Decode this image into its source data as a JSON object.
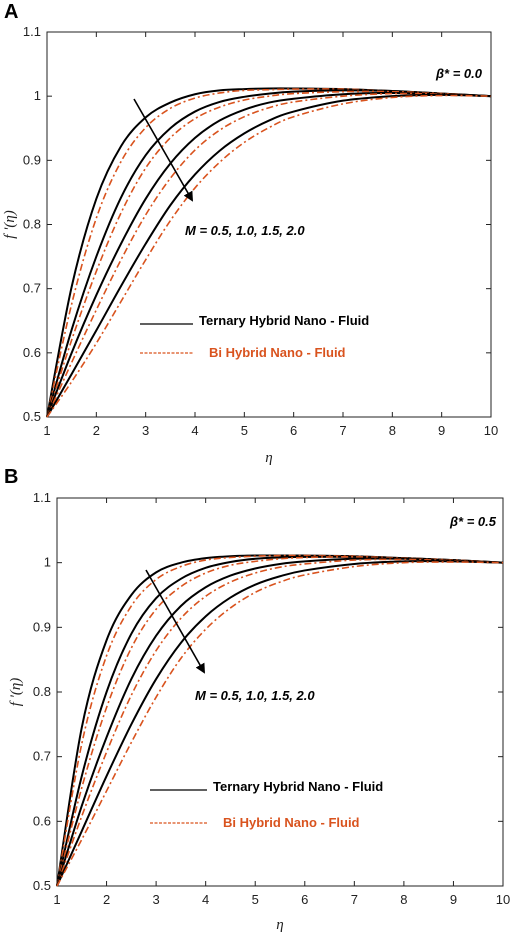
{
  "colors": {
    "ternary": "#000000",
    "bi": "#d9531e",
    "axis": "#222222"
  },
  "chart_data": [
    {
      "type": "line",
      "panel_label": "A",
      "annotation": "β* = 0.0",
      "arrow_label": "M = 0.5, 1.0, 1.5, 2.0",
      "xlabel": "η",
      "ylabel": "f '(η)",
      "xlim": [
        1,
        10
      ],
      "ylim": [
        0.5,
        1.1
      ],
      "xticks": [
        "1",
        "2",
        "3",
        "4",
        "5",
        "6",
        "7",
        "8",
        "9",
        "10"
      ],
      "yticks": [
        "0.5",
        "0.6",
        "0.7",
        "0.8",
        "0.9",
        "1",
        "1.1"
      ],
      "legend": {
        "position": "center-left",
        "entries": [
          "Ternary Hybrid Nano - Fluid",
          "Bi Hybrid Nano - Fluid"
        ]
      },
      "x": [
        1,
        1.5,
        2,
        2.5,
        3,
        3.5,
        4,
        4.5,
        5,
        5.5,
        6,
        7,
        8,
        9,
        10
      ],
      "series": [
        {
          "name": "Ternary Hybrid Nano - Fluid",
          "style": "solid",
          "M": 0.5,
          "values": [
            0.5,
            0.703,
            0.84,
            0.922,
            0.967,
            0.99,
            1.003,
            1.009,
            1.011,
            1.012,
            1.012,
            1.011,
            1.008,
            1.004,
            1.0
          ]
        },
        {
          "name": "Bi Hybrid Nano - Fluid",
          "style": "dashdot",
          "M": 0.5,
          "values": [
            0.5,
            0.676,
            0.81,
            0.898,
            0.951,
            0.981,
            0.997,
            1.005,
            1.009,
            1.01,
            1.011,
            1.011,
            1.008,
            1.004,
            1.0
          ]
        },
        {
          "name": "Ternary Hybrid Nano - Fluid",
          "style": "solid",
          "M": 1.0,
          "values": [
            0.5,
            0.636,
            0.75,
            0.842,
            0.908,
            0.95,
            0.976,
            0.991,
            0.999,
            1.004,
            1.007,
            1.009,
            1.008,
            1.004,
            1.0
          ]
        },
        {
          "name": "Bi Hybrid Nano - Fluid",
          "style": "dashdot",
          "M": 1.0,
          "values": [
            0.5,
            0.62,
            0.727,
            0.818,
            0.888,
            0.935,
            0.965,
            0.983,
            0.994,
            1.0,
            1.004,
            1.007,
            1.007,
            1.004,
            1.0
          ]
        },
        {
          "name": "Ternary Hybrid Nano - Fluid",
          "style": "solid",
          "M": 1.5,
          "values": [
            0.5,
            0.6,
            0.69,
            0.77,
            0.84,
            0.895,
            0.935,
            0.962,
            0.979,
            0.99,
            0.996,
            1.003,
            1.005,
            1.003,
            1.0
          ]
        },
        {
          "name": "Bi Hybrid Nano - Fluid",
          "style": "dashdot",
          "M": 1.5,
          "values": [
            0.5,
            0.585,
            0.667,
            0.745,
            0.815,
            0.872,
            0.916,
            0.947,
            0.968,
            0.982,
            0.991,
            1.0,
            1.004,
            1.003,
            1.0
          ]
        },
        {
          "name": "Ternary Hybrid Nano - Fluid",
          "style": "solid",
          "M": 2.0,
          "values": [
            0.5,
            0.567,
            0.635,
            0.704,
            0.77,
            0.83,
            0.878,
            0.915,
            0.942,
            0.962,
            0.976,
            0.993,
            1.0,
            1.002,
            1.0
          ]
        },
        {
          "name": "Bi Hybrid Nano - Fluid",
          "style": "dashdot",
          "M": 2.0,
          "values": [
            0.5,
            0.555,
            0.615,
            0.68,
            0.745,
            0.806,
            0.857,
            0.897,
            0.928,
            0.951,
            0.968,
            0.988,
            0.998,
            1.001,
            1.0
          ]
        }
      ]
    },
    {
      "type": "line",
      "panel_label": "B",
      "annotation": "β* = 0.5",
      "arrow_label": "M = 0.5, 1.0, 1.5, 2.0",
      "xlabel": "η",
      "ylabel": "f '(η)",
      "xlim": [
        1,
        10
      ],
      "ylim": [
        0.5,
        1.1
      ],
      "xticks": [
        "1",
        "2",
        "3",
        "4",
        "5",
        "6",
        "7",
        "8",
        "9",
        "10"
      ],
      "yticks": [
        "0.5",
        "0.6",
        "0.7",
        "0.8",
        "0.9",
        "1",
        "1.1"
      ],
      "legend": {
        "position": "center-left",
        "entries": [
          "Ternary Hybrid Nano - Fluid",
          "Bi Hybrid Nano - Fluid"
        ]
      },
      "x": [
        1,
        1.5,
        2,
        2.5,
        3,
        3.5,
        4,
        4.5,
        5,
        5.5,
        6,
        7,
        8,
        9,
        10
      ],
      "series": [
        {
          "name": "Ternary Hybrid Nano - Fluid",
          "style": "solid",
          "M": 0.5,
          "values": [
            0.5,
            0.745,
            0.88,
            0.95,
            0.985,
            1.0,
            1.007,
            1.01,
            1.011,
            1.011,
            1.011,
            1.01,
            1.007,
            1.004,
            1.0
          ]
        },
        {
          "name": "Bi Hybrid Nano - Fluid",
          "style": "dashdot",
          "M": 0.5,
          "values": [
            0.5,
            0.72,
            0.856,
            0.933,
            0.974,
            0.994,
            1.004,
            1.008,
            1.01,
            1.011,
            1.011,
            1.01,
            1.007,
            1.004,
            1.0
          ]
        },
        {
          "name": "Ternary Hybrid Nano - Fluid",
          "style": "solid",
          "M": 1.0,
          "values": [
            0.5,
            0.67,
            0.8,
            0.89,
            0.945,
            0.975,
            0.992,
            1.001,
            1.006,
            1.008,
            1.009,
            1.009,
            1.007,
            1.004,
            1.0
          ]
        },
        {
          "name": "Bi Hybrid Nano - Fluid",
          "style": "dashdot",
          "M": 1.0,
          "values": [
            0.5,
            0.652,
            0.776,
            0.868,
            0.928,
            0.963,
            0.984,
            0.996,
            1.002,
            1.006,
            1.008,
            1.009,
            1.007,
            1.004,
            1.0
          ]
        },
        {
          "name": "Ternary Hybrid Nano - Fluid",
          "style": "solid",
          "M": 1.5,
          "values": [
            0.5,
            0.624,
            0.73,
            0.82,
            0.887,
            0.933,
            0.962,
            0.98,
            0.991,
            0.998,
            1.002,
            1.006,
            1.006,
            1.003,
            1.0
          ]
        },
        {
          "name": "Bi Hybrid Nano - Fluid",
          "style": "dashdot",
          "M": 1.5,
          "values": [
            0.5,
            0.608,
            0.707,
            0.795,
            0.864,
            0.914,
            0.948,
            0.97,
            0.984,
            0.993,
            0.998,
            1.004,
            1.005,
            1.003,
            1.0
          ]
        },
        {
          "name": "Ternary Hybrid Nano - Fluid",
          "style": "solid",
          "M": 2.0,
          "values": [
            0.5,
            0.585,
            0.67,
            0.75,
            0.82,
            0.876,
            0.917,
            0.946,
            0.966,
            0.979,
            0.988,
            0.998,
            1.002,
            1.002,
            1.0
          ]
        },
        {
          "name": "Bi Hybrid Nano - Fluid",
          "style": "dashdot",
          "M": 2.0,
          "values": [
            0.5,
            0.572,
            0.647,
            0.722,
            0.792,
            0.852,
            0.897,
            0.93,
            0.954,
            0.97,
            0.981,
            0.994,
            1.0,
            1.001,
            1.0
          ]
        }
      ]
    }
  ]
}
